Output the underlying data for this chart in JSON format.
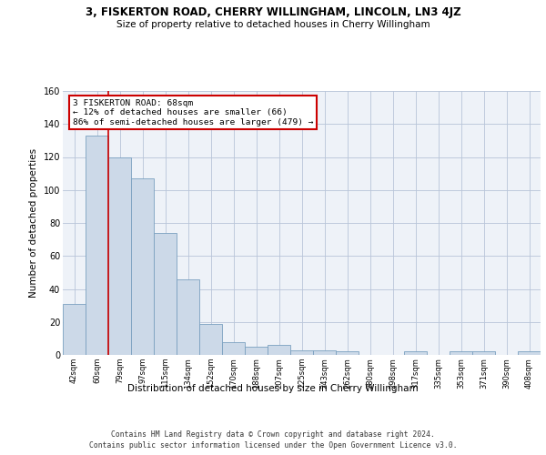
{
  "title_line1": "3, FISKERTON ROAD, CHERRY WILLINGHAM, LINCOLN, LN3 4JZ",
  "title_line2": "Size of property relative to detached houses in Cherry Willingham",
  "xlabel": "Distribution of detached houses by size in Cherry Willingham",
  "ylabel": "Number of detached properties",
  "footer_line1": "Contains HM Land Registry data © Crown copyright and database right 2024.",
  "footer_line2": "Contains public sector information licensed under the Open Government Licence v3.0.",
  "categories": [
    "42sqm",
    "60sqm",
    "79sqm",
    "97sqm",
    "115sqm",
    "134sqm",
    "152sqm",
    "170sqm",
    "188sqm",
    "207sqm",
    "225sqm",
    "243sqm",
    "262sqm",
    "280sqm",
    "298sqm",
    "317sqm",
    "335sqm",
    "353sqm",
    "371sqm",
    "390sqm",
    "408sqm"
  ],
  "values": [
    31,
    133,
    120,
    107,
    74,
    46,
    19,
    8,
    5,
    6,
    3,
    3,
    2,
    0,
    0,
    2,
    0,
    2,
    2,
    0,
    2
  ],
  "bar_color": "#ccd9e8",
  "bar_edge_color": "#7aa0c0",
  "grid_color": "#b8c4d8",
  "background_color": "#eef2f8",
  "annotation_box_color": "#ffffff",
  "annotation_box_edge": "#cc0000",
  "annotation_line_color": "#cc0000",
  "ylim": [
    0,
    160
  ],
  "yticks": [
    0,
    20,
    40,
    60,
    80,
    100,
    120,
    140,
    160
  ]
}
